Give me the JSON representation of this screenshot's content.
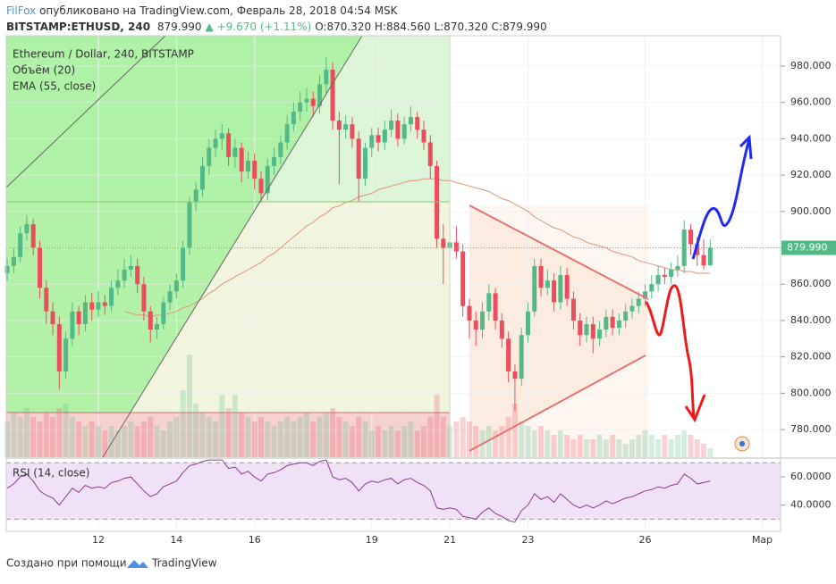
{
  "header": {
    "author": "FilFox",
    "published": "опубликовано на TradingView.com, Февраль 28, 2018 04:54 MSK",
    "symbol": "BITSTAMP:ETHUSD, 240",
    "last": "879.990",
    "change": "+9.670 (+1.11%)",
    "open": "O:870.320",
    "high": "H:884.560",
    "low": "L:870.320",
    "close": "C:879.990"
  },
  "footer": {
    "created_with": "Создано при помощи",
    "brand": "TradingView"
  },
  "chart_data": {
    "type": "candlestick",
    "title": "Ethereum / Dollar, 240, BITSTAMP",
    "up_color": "#53b987",
    "down_color": "#eb4d5c",
    "ylim": [
      764.8,
      996.7
    ],
    "yticks": [
      {
        "value": 780,
        "label": "780.000"
      },
      {
        "value": 800,
        "label": "800.000"
      },
      {
        "value": 820,
        "label": "820.000"
      },
      {
        "value": 840,
        "label": "840.000"
      },
      {
        "value": 860,
        "label": "860.000"
      },
      {
        "value": 880,
        "label": "880.000"
      },
      {
        "value": 900,
        "label": "900.000"
      },
      {
        "value": 920,
        "label": "920.000"
      },
      {
        "value": 940,
        "label": "940.000"
      },
      {
        "value": 960,
        "label": "960.000"
      },
      {
        "value": 980,
        "label": "980.000"
      }
    ],
    "last_value_label": "879.990",
    "categories": [
      null,
      null,
      null,
      null,
      null,
      null,
      null,
      null,
      null,
      null,
      null,
      null,
      null,
      null,
      "12",
      null,
      null,
      null,
      null,
      null,
      null,
      null,
      null,
      null,
      null,
      null,
      "14",
      null,
      null,
      null,
      null,
      null,
      null,
      null,
      null,
      null,
      null,
      null,
      "16",
      null,
      null,
      null,
      null,
      null,
      null,
      null,
      null,
      null,
      null,
      null,
      null,
      null,
      null,
      null,
      null,
      null,
      "19",
      null,
      null,
      null,
      null,
      null,
      null,
      null,
      null,
      null,
      null,
      null,
      "21",
      null,
      null,
      null,
      null,
      null,
      null,
      null,
      null,
      null,
      null,
      null,
      "23",
      null,
      null,
      null,
      null,
      null,
      null,
      null,
      null,
      null,
      null,
      null,
      null,
      null,
      null,
      null,
      null,
      null,
      "26",
      null,
      null,
      null,
      null,
      null,
      null,
      null,
      null,
      null,
      null,
      null,
      null,
      null,
      null,
      null,
      null,
      null,
      "Мар",
      null,
      null
    ],
    "open": [
      866,
      870,
      875,
      888,
      893,
      880,
      858,
      845,
      838,
      812,
      830,
      845,
      838,
      850,
      846,
      850,
      848,
      858,
      862,
      868,
      870,
      860,
      845,
      835,
      838,
      850,
      856,
      862,
      880,
      905,
      912,
      925,
      935,
      940,
      943,
      930,
      935,
      922,
      928,
      918,
      910,
      925,
      930,
      938,
      948,
      955,
      960,
      962,
      958,
      970,
      978,
      950,
      945,
      948,
      940,
      918,
      935,
      942,
      938,
      945,
      950,
      940,
      948,
      952,
      945,
      938,
      925,
      885,
      880,
      883,
      878,
      848,
      840,
      835,
      845,
      855,
      840,
      830,
      812,
      808,
      832,
      845,
      870,
      858,
      862,
      850,
      865,
      852,
      840,
      832,
      838,
      830,
      835,
      842,
      836,
      840,
      845,
      848,
      852,
      856,
      860,
      865,
      864,
      868,
      870,
      890,
      882,
      876,
      870.32,
      null,
      null,
      null,
      null,
      null,
      null,
      null,
      null,
      null,
      null
    ],
    "high": [
      874,
      880,
      892,
      898,
      896,
      884,
      862,
      850,
      842,
      834,
      850,
      848,
      854,
      855,
      856,
      854,
      862,
      868,
      874,
      876,
      874,
      864,
      848,
      842,
      853,
      860,
      866,
      884,
      908,
      916,
      930,
      940,
      945,
      948,
      946,
      940,
      938,
      933,
      932,
      922,
      929,
      935,
      942,
      953,
      960,
      966,
      968,
      966,
      975,
      985,
      982,
      955,
      953,
      952,
      944,
      938,
      946,
      946,
      950,
      956,
      954,
      952,
      958,
      955,
      950,
      942,
      928,
      893,
      890,
      892,
      882,
      852,
      845,
      850,
      860,
      858,
      844,
      834,
      816,
      836,
      850,
      874,
      874,
      868,
      866,
      870,
      869,
      856,
      844,
      842,
      842,
      840,
      846,
      846,
      844,
      849,
      852,
      856,
      860,
      865,
      870,
      869,
      872,
      876,
      895,
      893,
      886,
      885,
      884.56,
      null,
      null,
      null,
      null,
      null,
      null,
      null,
      null,
      null,
      null
    ],
    "low": [
      862,
      866,
      872,
      884,
      876,
      852,
      838,
      832,
      802,
      808,
      826,
      832,
      834,
      840,
      842,
      843,
      845,
      854,
      858,
      864,
      855,
      840,
      828,
      830,
      835,
      846,
      852,
      858,
      876,
      900,
      908,
      920,
      930,
      934,
      925,
      924,
      916,
      918,
      912,
      905,
      906,
      920,
      926,
      934,
      944,
      950,
      955,
      952,
      954,
      965,
      945,
      915,
      940,
      935,
      905,
      914,
      930,
      933,
      934,
      941,
      936,
      937,
      944,
      940,
      934,
      918,
      880,
      860,
      876,
      874,
      842,
      830,
      826,
      830,
      840,
      835,
      825,
      806,
      790,
      804,
      828,
      842,
      853,
      854,
      845,
      846,
      848,
      835,
      826,
      828,
      822,
      826,
      831,
      832,
      832,
      836,
      841,
      844,
      848,
      852,
      856,
      860,
      860,
      864,
      866,
      876,
      870,
      868,
      870.32,
      null,
      null,
      null,
      null,
      null,
      null,
      null,
      null,
      null,
      null
    ],
    "close": [
      870,
      875,
      888,
      893,
      880,
      858,
      845,
      838,
      812,
      830,
      845,
      838,
      850,
      846,
      850,
      848,
      858,
      862,
      868,
      870,
      860,
      845,
      835,
      838,
      850,
      856,
      862,
      880,
      905,
      912,
      925,
      935,
      940,
      943,
      930,
      935,
      922,
      928,
      918,
      910,
      925,
      930,
      938,
      948,
      955,
      960,
      962,
      958,
      970,
      978,
      950,
      945,
      948,
      940,
      918,
      935,
      942,
      938,
      945,
      950,
      940,
      948,
      952,
      945,
      938,
      925,
      885,
      880,
      883,
      878,
      848,
      840,
      835,
      845,
      855,
      840,
      830,
      812,
      808,
      832,
      845,
      870,
      858,
      862,
      850,
      865,
      852,
      840,
      832,
      838,
      830,
      835,
      842,
      836,
      840,
      845,
      848,
      852,
      856,
      860,
      865,
      864,
      868,
      870,
      890,
      882,
      876,
      870.32,
      879.99,
      null,
      null,
      null,
      null,
      null,
      null,
      null,
      null,
      null,
      null
    ],
    "volume": {
      "name": "Объём (20)",
      "ylim": [
        0,
        130
      ],
      "values": [
        40,
        50,
        45,
        55,
        45,
        40,
        50,
        45,
        55,
        60,
        45,
        40,
        35,
        40,
        35,
        30,
        35,
        30,
        35,
        40,
        35,
        40,
        45,
        35,
        30,
        40,
        45,
        75,
        115,
        60,
        50,
        45,
        40,
        70,
        55,
        70,
        50,
        45,
        40,
        45,
        40,
        35,
        40,
        45,
        40,
        45,
        50,
        40,
        45,
        50,
        55,
        45,
        40,
        35,
        45,
        40,
        30,
        35,
        30,
        35,
        30,
        35,
        40,
        30,
        35,
        45,
        70,
        45,
        35,
        40,
        45,
        40,
        35,
        30,
        35,
        30,
        35,
        45,
        60,
        40,
        35,
        30,
        35,
        30,
        25,
        30,
        25,
        20,
        25,
        20,
        20,
        25,
        20,
        25,
        20,
        15,
        20,
        25,
        30,
        25,
        20,
        25,
        20,
        25,
        30,
        25,
        20,
        15,
        10,
        null,
        null,
        null,
        null,
        null,
        null,
        null,
        null,
        null,
        null
      ]
    },
    "ema": {
      "name": "EMA (55, close)",
      "color": "#e0927a",
      "values": [
        null,
        null,
        null,
        null,
        null,
        null,
        null,
        null,
        null,
        null,
        null,
        null,
        null,
        null,
        null,
        null,
        null,
        null,
        845,
        844,
        843,
        843,
        842,
        843,
        843,
        844,
        845,
        847,
        848,
        850,
        852,
        855,
        857,
        860,
        862,
        864,
        866,
        868,
        870,
        872,
        875,
        877,
        880,
        883,
        886,
        889,
        892,
        894,
        897,
        899,
        902,
        903,
        905,
        906,
        908,
        909,
        910,
        912,
        913,
        914,
        915,
        916,
        917,
        917,
        918,
        918,
        918,
        917,
        917,
        916,
        915,
        914,
        913,
        912,
        911,
        909,
        907,
        906,
        904,
        902,
        900,
        897,
        895,
        893,
        891,
        890,
        888,
        886,
        885,
        883,
        882,
        881,
        880,
        878,
        877,
        876,
        875,
        873,
        872,
        871,
        870,
        869,
        868,
        868,
        867,
        867,
        866,
        866,
        866,
        null,
        null,
        null,
        null,
        null,
        null,
        null,
        null,
        null,
        null
      ]
    },
    "rsi": {
      "name": "RSI (14, close)",
      "color": "#8b3a8f",
      "ylim": [
        23.3,
        72.7
      ],
      "yticks": [
        {
          "value": 60,
          "label": "60.0000"
        },
        {
          "value": 40,
          "label": "40.0000"
        }
      ],
      "bands": [
        30,
        70
      ],
      "values": [
        52,
        55,
        60,
        62,
        57,
        50,
        47,
        45,
        40,
        46,
        52,
        49,
        54,
        52,
        53,
        52,
        56,
        57,
        59,
        60,
        55,
        50,
        46,
        48,
        53,
        55,
        57,
        63,
        68,
        69,
        71,
        72,
        72,
        72,
        66,
        67,
        62,
        64,
        60,
        57,
        62,
        63,
        65,
        68,
        69,
        70,
        70,
        68,
        71,
        72,
        60,
        58,
        59,
        56,
        50,
        55,
        57,
        56,
        58,
        59,
        55,
        58,
        59,
        56,
        54,
        50,
        38,
        37,
        38,
        37,
        32,
        31,
        30,
        35,
        38,
        34,
        32,
        29,
        28,
        36,
        40,
        48,
        44,
        46,
        42,
        48,
        44,
        40,
        38,
        40,
        38,
        40,
        43,
        41,
        43,
        45,
        46,
        48,
        50,
        51,
        53,
        52,
        54,
        55,
        62,
        59,
        55,
        56,
        57,
        null,
        null,
        null,
        null,
        null,
        null,
        null,
        null,
        null,
        null
      ]
    }
  }
}
